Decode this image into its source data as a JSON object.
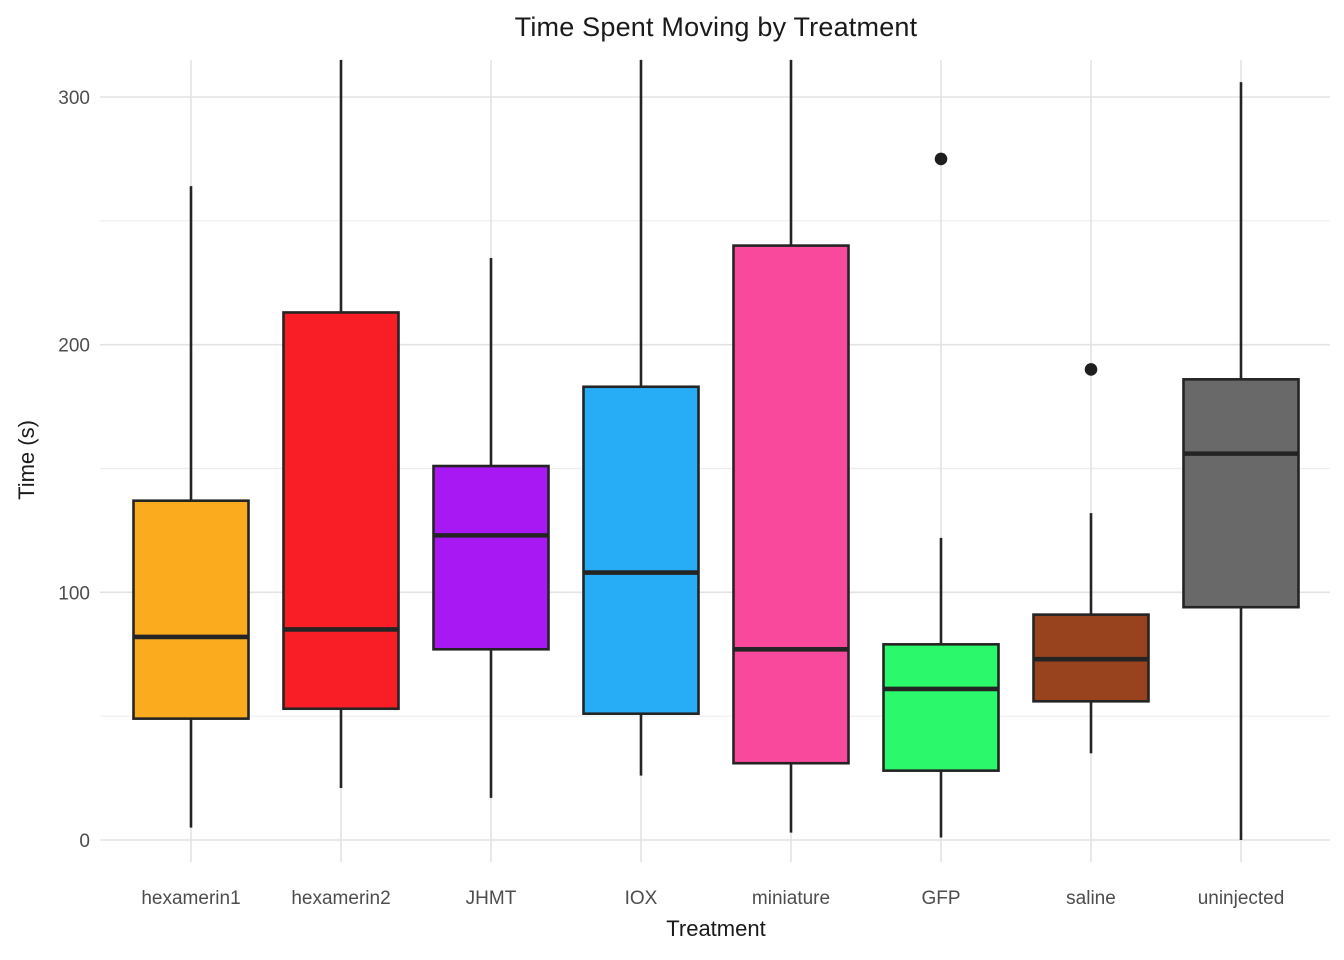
{
  "page": {
    "background_color": "#FFFFFF"
  },
  "chart_data": {
    "type": "boxplot",
    "title": "Time Spent Moving by Treatment",
    "xlabel": "Treatment",
    "ylabel": "Time (s)",
    "ylim": [
      -9,
      315
    ],
    "yticks": [
      0,
      100,
      200,
      300
    ],
    "yticks_minor": [
      50,
      150,
      250
    ],
    "grid": "light horizontal major+minor lines and vertical major lines on white background",
    "legend": "none",
    "categories": [
      "hexamerin1",
      "hexamerin2",
      "JHMT",
      "IOX",
      "miniature",
      "GFP",
      "saline",
      "uninjected"
    ],
    "series": [
      {
        "name": "hexamerin1",
        "color": "#FAAB1E",
        "whisker_low": 5,
        "q1": 49,
        "median": 82,
        "q3": 137,
        "whisker_high": 264,
        "outliers": []
      },
      {
        "name": "hexamerin2",
        "color": "#F91E26",
        "whisker_low": 21,
        "q1": 53,
        "median": 85,
        "q3": 213,
        "whisker_high": 315,
        "outliers": []
      },
      {
        "name": "JHMT",
        "color": "#A718F2",
        "whisker_low": 17,
        "q1": 77,
        "median": 123,
        "q3": 151,
        "whisker_high": 235,
        "outliers": []
      },
      {
        "name": "IOX",
        "color": "#27ADF5",
        "whisker_low": 26,
        "q1": 51,
        "median": 108,
        "q3": 183,
        "whisker_high": 315,
        "outliers": []
      },
      {
        "name": "miniature",
        "color": "#F8499C",
        "whisker_low": 3,
        "q1": 31,
        "median": 77,
        "q3": 240,
        "whisker_high": 315,
        "outliers": []
      },
      {
        "name": "GFP",
        "color": "#2BF96B",
        "whisker_low": 1,
        "q1": 28,
        "median": 61,
        "q3": 79,
        "whisker_high": 122,
        "outliers": [
          275
        ]
      },
      {
        "name": "saline",
        "color": "#98431E",
        "whisker_low": 35,
        "q1": 56,
        "median": 73,
        "q3": 91,
        "whisker_high": 132,
        "outliers": [
          190
        ]
      },
      {
        "name": "uninjected",
        "color": "#696969",
        "whisker_low": 0,
        "q1": 94,
        "median": 156,
        "q3": 186,
        "whisker_high": 306,
        "outliers": []
      }
    ],
    "style": {
      "box_border_color": "#242424",
      "gridline_major_color": "#E3E3E3",
      "gridline_minor_color": "#EDEDED",
      "tick_label_color": "#4D4D4D",
      "title_color": "#1A1A1A"
    }
  }
}
